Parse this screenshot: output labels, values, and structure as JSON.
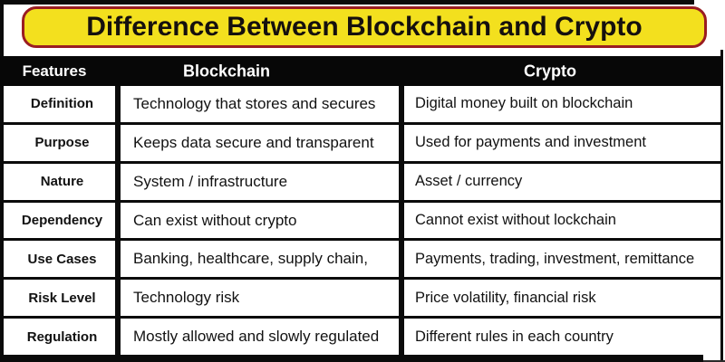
{
  "title": "Difference Between Blockchain and Crypto",
  "colors": {
    "banner_bg": "#F3E01E",
    "banner_border": "#9A1D22",
    "header_bar_bg": "#070707",
    "header_text": "#FFFFFF",
    "body_text": "#121212",
    "frame": "#0A0A0A"
  },
  "table": {
    "headers": [
      "Features",
      "Blockchain",
      "Crypto"
    ],
    "rows": [
      {
        "feature": "Definition",
        "blockchain": "Technology that stores and secures",
        "crypto": "Digital money built on blockchain"
      },
      {
        "feature": "Purpose",
        "blockchain": "Keeps data secure and transparent",
        "crypto": "Used for payments and investment"
      },
      {
        "feature": "Nature",
        "blockchain": "System / infrastructure",
        "crypto": "Asset / currency"
      },
      {
        "feature": "Dependency",
        "blockchain": "Can exist without crypto",
        "crypto": "Cannot exist without lockchain"
      },
      {
        "feature": "Use Cases",
        "blockchain": "Banking, healthcare, supply chain,",
        "crypto": "Payments, trading, investment, remittance"
      },
      {
        "feature": "Risk Level",
        "blockchain": "Technology risk",
        "crypto": "Price volatility, financial risk"
      },
      {
        "feature": "Regulation",
        "blockchain": "Mostly allowed and slowly regulated",
        "crypto": "Different rules in each country"
      }
    ]
  },
  "chart_data": {
    "type": "table",
    "title": "Difference Between Blockchain and Crypto",
    "columns": [
      "Features",
      "Blockchain",
      "Crypto"
    ],
    "rows": [
      [
        "Definition",
        "Technology that stores and secures",
        "Digital money built on blockchain"
      ],
      [
        "Purpose",
        "Keeps data secure and transparent",
        "Used for payments and investment"
      ],
      [
        "Nature",
        "System / infrastructure",
        "Asset / currency"
      ],
      [
        "Dependency",
        "Can exist without crypto",
        "Cannot exist without lockchain"
      ],
      [
        "Use Cases",
        "Banking, healthcare, supply chain,",
        "Payments, trading, investment, remittance"
      ],
      [
        "Risk Level",
        "Technology risk",
        "Price volatility, financial risk"
      ],
      [
        "Regulation",
        "Mostly allowed and slowly regulated",
        "Different rules in each country"
      ]
    ]
  }
}
